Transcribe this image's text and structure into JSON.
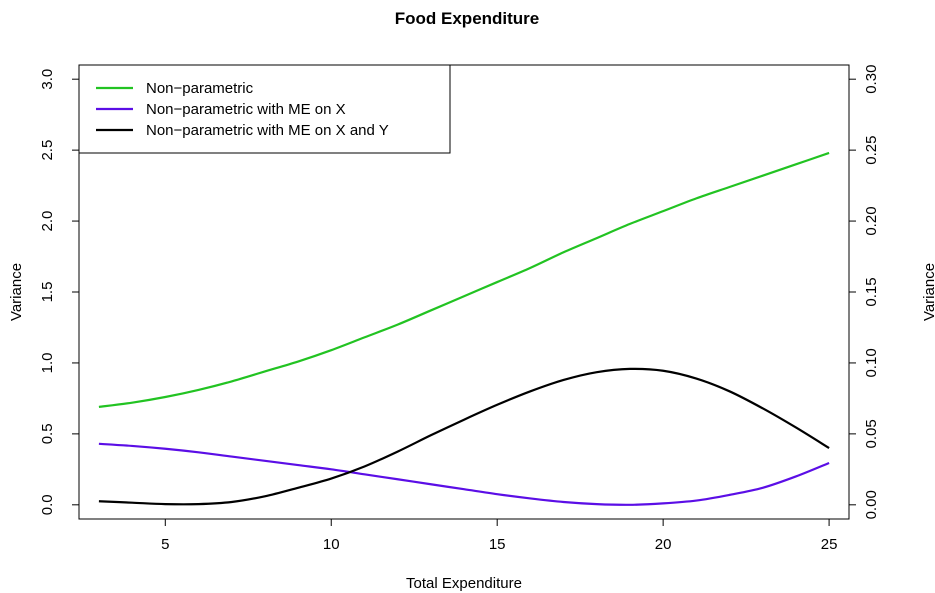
{
  "chart_data": {
    "type": "line",
    "title": "Food Expenditure",
    "xlabel": "Total Expenditure",
    "ylabel": "Variance",
    "ylabel_right": "Variance",
    "xlim": [
      2.4,
      25.6
    ],
    "ylim": [
      -0.1,
      3.1
    ],
    "ylim_right": [
      -0.01,
      0.31
    ],
    "x_ticks": [
      "5",
      "10",
      "15",
      "20",
      "25"
    ],
    "x_tick_values": [
      5,
      10,
      15,
      20,
      25
    ],
    "y_ticks": [
      "0.0",
      "0.5",
      "1.0",
      "1.5",
      "2.0",
      "2.5",
      "3.0"
    ],
    "y_tick_values": [
      0,
      0.5,
      1.0,
      1.5,
      2.0,
      2.5,
      3.0
    ],
    "y_right_ticks": [
      "0.00",
      "0.05",
      "0.10",
      "0.15",
      "0.20",
      "0.25",
      "0.30"
    ],
    "y_right_tick_values": [
      0,
      0.05,
      0.1,
      0.15,
      0.2,
      0.25,
      0.3
    ],
    "legend_position": "top-left",
    "series": [
      {
        "name": "Non−parametric",
        "color": "#22c322",
        "axis": "left",
        "x": [
          3,
          4,
          5,
          6,
          7,
          8,
          9,
          10,
          11,
          12,
          13,
          14,
          15,
          16,
          17,
          18,
          19,
          20,
          21,
          22,
          23,
          24,
          25
        ],
        "values": [
          0.69,
          0.72,
          0.76,
          0.81,
          0.87,
          0.94,
          1.01,
          1.09,
          1.18,
          1.27,
          1.37,
          1.47,
          1.57,
          1.67,
          1.78,
          1.88,
          1.98,
          2.07,
          2.16,
          2.24,
          2.32,
          2.4,
          2.48
        ]
      },
      {
        "name": "Non−parametric with ME on X",
        "color": "#5b0ee6",
        "axis": "left",
        "x": [
          3,
          4,
          5,
          6,
          7,
          8,
          9,
          10,
          11,
          12,
          13,
          14,
          15,
          16,
          17,
          18,
          19,
          20,
          21,
          22,
          23,
          24,
          25
        ],
        "values": [
          0.43,
          0.415,
          0.395,
          0.37,
          0.34,
          0.31,
          0.28,
          0.25,
          0.215,
          0.18,
          0.145,
          0.11,
          0.075,
          0.045,
          0.02,
          0.005,
          0.0,
          0.01,
          0.03,
          0.07,
          0.12,
          0.2,
          0.295
        ]
      },
      {
        "name": "Non−parametric with ME on X and Y",
        "color": "#000000",
        "axis": "right",
        "x": [
          3,
          4,
          5,
          6,
          7,
          8,
          9,
          10,
          11,
          12,
          13,
          14,
          15,
          16,
          17,
          18,
          19,
          20,
          21,
          22,
          23,
          24,
          25
        ],
        "values": [
          0.0025,
          0.0015,
          0.0005,
          0.0005,
          0.002,
          0.006,
          0.012,
          0.0185,
          0.027,
          0.0375,
          0.049,
          0.06,
          0.0705,
          0.08,
          0.088,
          0.0935,
          0.0958,
          0.0945,
          0.089,
          0.08,
          0.068,
          0.0545,
          0.04
        ]
      }
    ]
  }
}
